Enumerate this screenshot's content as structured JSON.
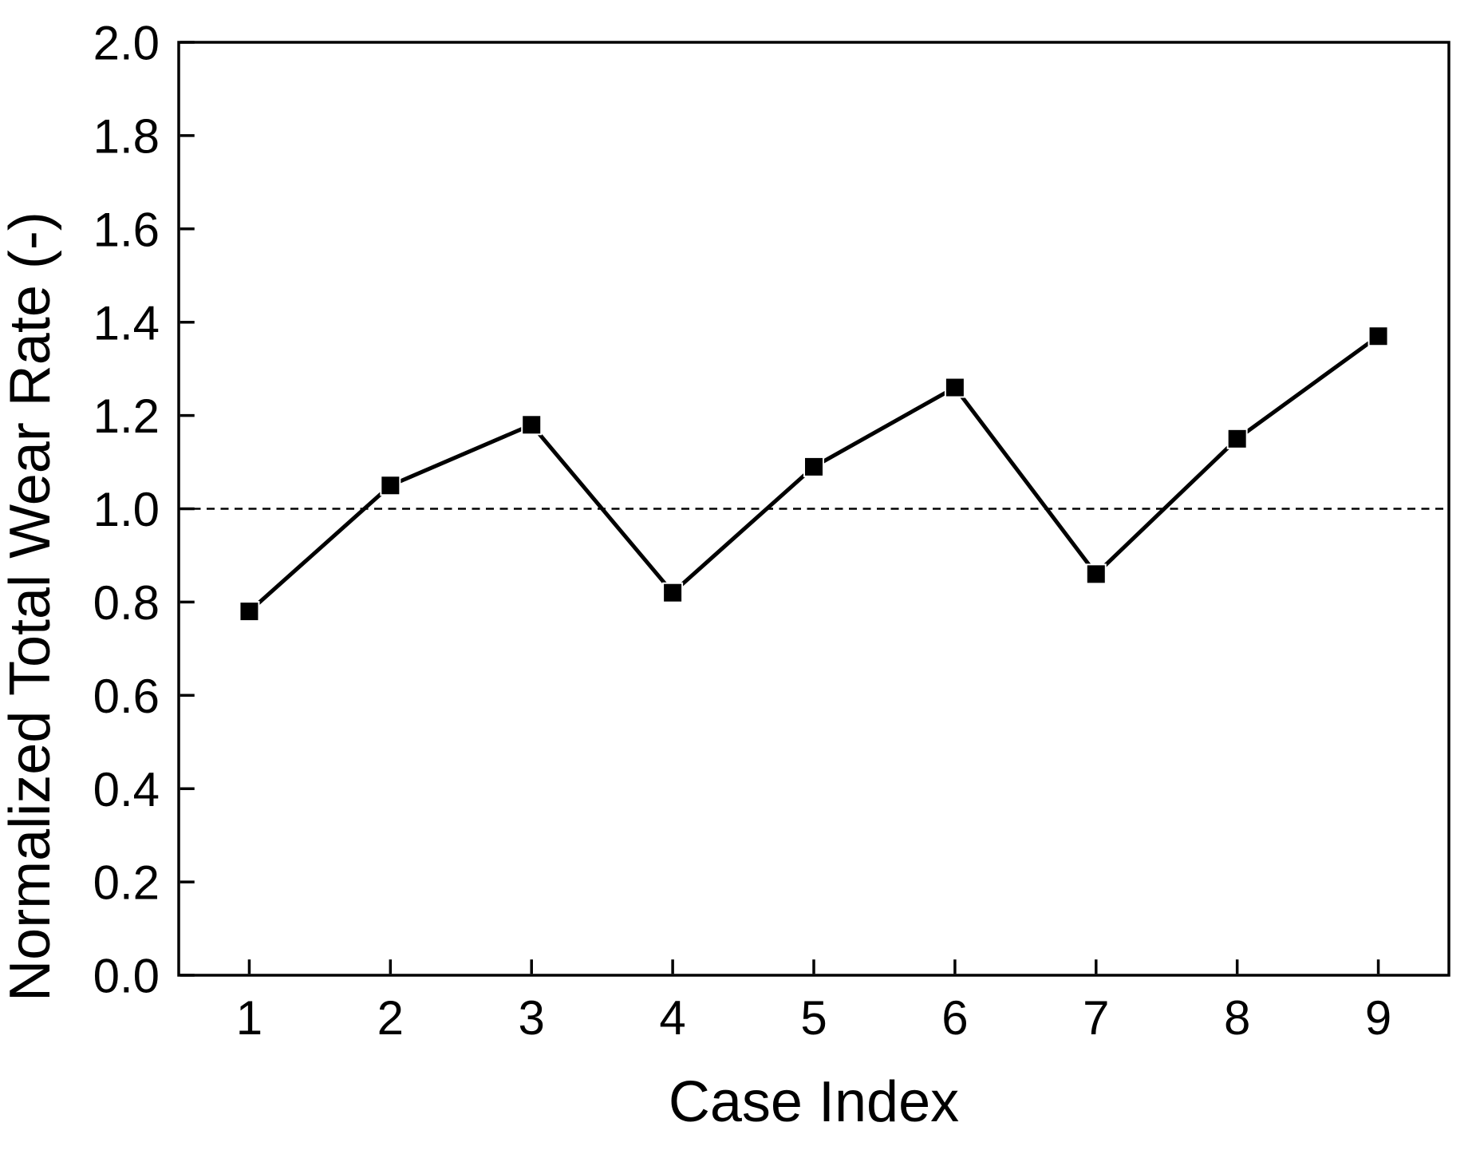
{
  "chart_data": {
    "type": "line",
    "title": "",
    "xlabel": "Case Index",
    "ylabel": "Normalized Total Wear Rate (-)",
    "x": [
      1,
      2,
      3,
      4,
      5,
      6,
      7,
      8,
      9
    ],
    "series": [
      {
        "values": [
          0.78,
          1.05,
          1.18,
          0.82,
          1.09,
          1.26,
          0.86,
          1.15,
          1.37
        ],
        "marker": "filled-square",
        "line_color": "#000000",
        "marker_color": "#000000"
      }
    ],
    "xlim": [
      0.5,
      9.5
    ],
    "ylim": [
      0.0,
      2.0
    ],
    "xtick_labels": [
      "1",
      "2",
      "3",
      "4",
      "5",
      "6",
      "7",
      "8",
      "9"
    ],
    "ytick_labels": [
      "0.0",
      "0.2",
      "0.4",
      "0.6",
      "0.8",
      "1.0",
      "1.2",
      "1.4",
      "1.6",
      "1.8",
      "2.0"
    ],
    "reference_line": {
      "y": 1.0,
      "style": "dashed",
      "color": "#000000"
    },
    "grid": false,
    "legend": false,
    "colors": {
      "axis": "#000000",
      "text": "#000000",
      "background": "#ffffff"
    }
  }
}
